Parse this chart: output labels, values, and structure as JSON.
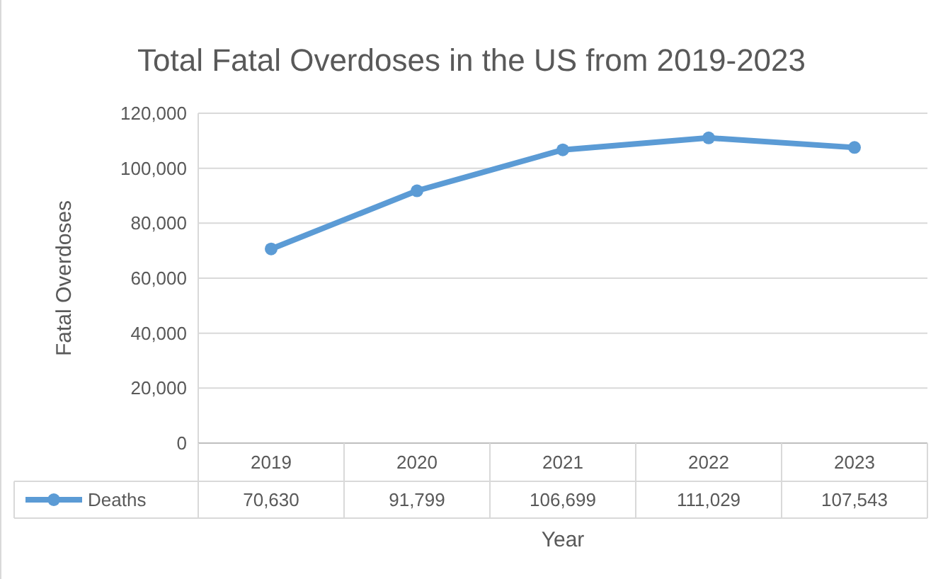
{
  "chart_data": {
    "type": "line",
    "title": "Total Fatal Overdoses in the US from 2019-2023",
    "xlabel": "Year",
    "ylabel": "Fatal Overdoses",
    "categories": [
      "2019",
      "2020",
      "2021",
      "2022",
      "2023"
    ],
    "series": [
      {
        "name": "Deaths",
        "color": "#5b9bd5",
        "values": [
          70630,
          91799,
          106699,
          111029,
          107543
        ],
        "value_labels": [
          "70,630",
          "91,799",
          "106,699",
          "111,029",
          "107,543"
        ]
      }
    ],
    "ylim": [
      0,
      120000
    ],
    "yticks": [
      {
        "value": 0,
        "label": "0"
      },
      {
        "value": 20000,
        "label": "20,000"
      },
      {
        "value": 40000,
        "label": "40,000"
      },
      {
        "value": 60000,
        "label": "60,000"
      },
      {
        "value": 80000,
        "label": "80,000"
      },
      {
        "value": 100000,
        "label": "100,000"
      },
      {
        "value": 120000,
        "label": "120,000"
      }
    ],
    "grid": "y",
    "marker": "circle",
    "line_style": "solid",
    "legend": "bottom"
  }
}
